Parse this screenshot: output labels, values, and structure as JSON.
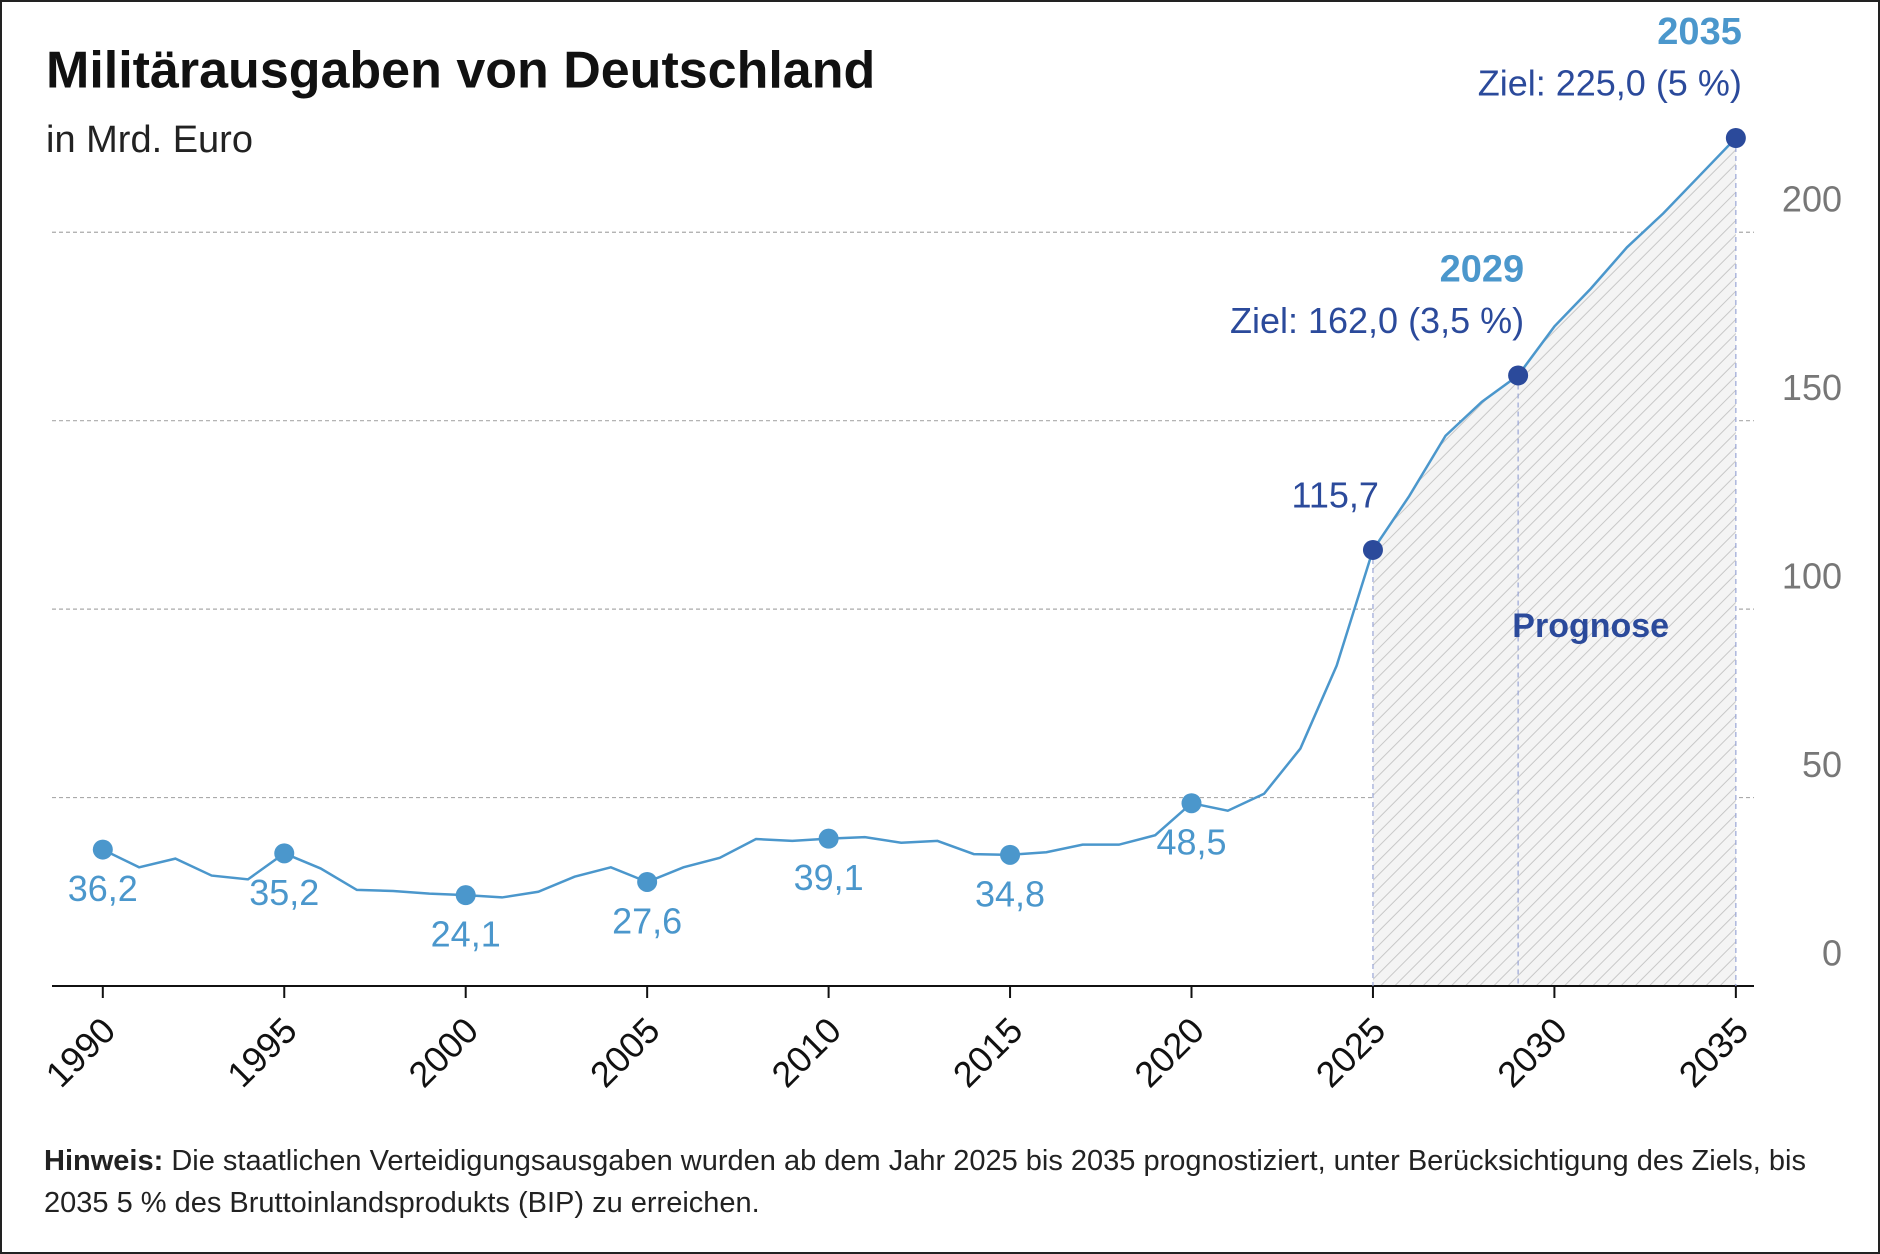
{
  "chart_data": {
    "type": "line",
    "title": "Militärausgaben von Deutschland",
    "subtitle": "in Mrd. Euro",
    "x": [
      1990,
      1991,
      1992,
      1993,
      1994,
      1995,
      1996,
      1997,
      1998,
      1999,
      2000,
      2001,
      2002,
      2003,
      2004,
      2005,
      2006,
      2007,
      2008,
      2009,
      2010,
      2011,
      2012,
      2013,
      2014,
      2015,
      2016,
      2017,
      2018,
      2019,
      2020,
      2021,
      2022,
      2023,
      2024,
      2025,
      2026,
      2027,
      2028,
      2029,
      2030,
      2031,
      2032,
      2033,
      2034,
      2035
    ],
    "series": [
      {
        "name": "Militärausgaben",
        "color": "#4b97cc",
        "values": [
          36.2,
          31.5,
          33.8,
          29.3,
          28.3,
          35.2,
          31.2,
          25.5,
          25.2,
          24.5,
          24.1,
          23.5,
          25,
          29,
          31.5,
          27.6,
          31.5,
          34,
          39,
          38.5,
          39.1,
          39.5,
          38,
          38.5,
          35,
          34.8,
          35.5,
          37.5,
          37.5,
          40,
          48.5,
          46.5,
          51,
          63,
          85,
          115.7,
          130,
          146,
          155,
          162,
          175,
          185,
          196,
          205,
          215,
          225
        ],
        "value_labels": [
          "36,2",
          null,
          null,
          null,
          null,
          "35,2",
          null,
          null,
          null,
          null,
          "24,1",
          null,
          null,
          null,
          null,
          "27,6",
          null,
          null,
          null,
          null,
          "39,1",
          null,
          null,
          null,
          null,
          "34,8",
          null,
          null,
          null,
          null,
          "48,5",
          null,
          null,
          null,
          null,
          "115,7",
          null,
          null,
          null,
          "Ziel: 162,0 (3,5 %)",
          null,
          null,
          null,
          null,
          null,
          "Ziel: 225,0 (5 %)"
        ]
      }
    ],
    "forecast": {
      "label": "Prognose",
      "from": 2025,
      "color": "#2b4a9b"
    },
    "xlim": [
      1988.6,
      2035.5
    ],
    "xticks": [
      1990,
      1995,
      2000,
      2005,
      2010,
      2015,
      2020,
      2025,
      2030,
      2035
    ],
    "ylim": [
      0,
      225
    ],
    "yticks": [
      0,
      50,
      100,
      150,
      200
    ],
    "grid": true,
    "note": {
      "label": "Hinweis:",
      "text": "Die staatlichen Verteidigungsausgaben wurden ab dem Jahr 2025 bis 2035 prognostiziert, unter Berücksichtigung des Ziels, bis 2035 5 % des Bruttoinlandsprodukts (BIP) zu erreichen."
    }
  }
}
